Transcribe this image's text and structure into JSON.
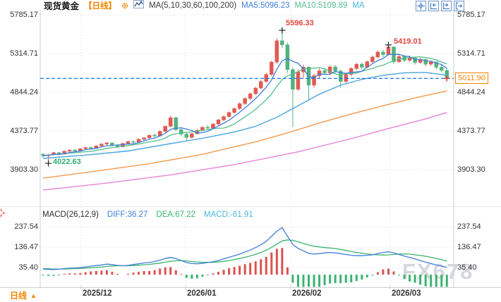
{
  "header": {
    "symbol": "现货黄金",
    "period_tag": "【日线】",
    "ma_settings": "MA(5,10,30,60,100,200)",
    "ma5": "MA5:5096.23",
    "ma10": "MA10:5109.89",
    "ma_more": "MA"
  },
  "toolbar_icons": [
    "crosshair",
    "compress-x-axis",
    "expand-x-axis",
    "exit-chart"
  ],
  "axes": {
    "price": [
      "5785.17",
      "5314.71",
      "4844.24",
      "4373.77",
      "3903.30"
    ],
    "macd": [
      "237.54",
      "136.47",
      "35.40"
    ],
    "time": [
      "2025/12",
      "2026/01",
      "2026/02",
      "2026/03"
    ]
  },
  "price_box": {
    "value": "5011.90"
  },
  "annotations": {
    "high1": "5596.33",
    "high2": "5419.01",
    "low": "4022.63"
  },
  "macd_header": {
    "title": "MACD(26,12,9)",
    "diff": "DIFF:36.27",
    "dea": "DEA:67.22",
    "macd": "MACD:-61.91"
  },
  "footer": {
    "period": "日线",
    "arrow": "▲"
  },
  "watermark": "FX678",
  "colors": {
    "up": "#e15a52",
    "down": "#54b27f",
    "ma5": "#3f7ed8",
    "ma10": "#53bd8e",
    "ma30": "#4da6e0",
    "ma60": "#f29a4e",
    "ma100": "#e884d8",
    "diff_line": "#3f7ed8",
    "dea_line": "#3cb371",
    "macd_text": "#49b8d8",
    "hist_pos": "#d9534f",
    "hist_neg": "#3cb371",
    "accent_orange": "#f28500",
    "price_line": "#1e76e8",
    "anno_red": "#e0463c",
    "anno_green": "#2eaf72",
    "grid": "#dcdde4",
    "border": "#c9cfd8",
    "axis_text": "#333333"
  },
  "chart_data": {
    "type": "candlestick+macd",
    "title": "现货黄金 日线 (Spot Gold, daily)",
    "price_axis_ticks": [
      5785.17,
      5314.71,
      4844.24,
      4373.77,
      3903.3
    ],
    "macd_axis_ticks": [
      237.54,
      136.47,
      35.4
    ],
    "time_ticks": [
      "2025/12",
      "2026/01",
      "2026/02",
      "2026/03"
    ],
    "last_price": 5011.9,
    "marked_points": [
      {
        "index": 45,
        "price": 5596.33,
        "kind": "high"
      },
      {
        "index": 65,
        "price": 5419.01,
        "kind": "high"
      },
      {
        "index": 1,
        "price": 4022.63,
        "kind": "low"
      }
    ],
    "candles_ohlc": [
      [
        4090,
        4105,
        4050,
        4072
      ],
      [
        4072,
        4090,
        4022.63,
        4085
      ],
      [
        4085,
        4120,
        4075,
        4110
      ],
      [
        4110,
        4118,
        4080,
        4092
      ],
      [
        4092,
        4135,
        4088,
        4128
      ],
      [
        4128,
        4150,
        4110,
        4142
      ],
      [
        4142,
        4155,
        4118,
        4130
      ],
      [
        4130,
        4165,
        4125,
        4158
      ],
      [
        4158,
        4180,
        4140,
        4172
      ],
      [
        4172,
        4185,
        4150,
        4160
      ],
      [
        4160,
        4200,
        4155,
        4192
      ],
      [
        4192,
        4225,
        4180,
        4215
      ],
      [
        4215,
        4240,
        4195,
        4228
      ],
      [
        4228,
        4235,
        4185,
        4198
      ],
      [
        4198,
        4210,
        4165,
        4180
      ],
      [
        4180,
        4230,
        4175,
        4222
      ],
      [
        4222,
        4255,
        4210,
        4245
      ],
      [
        4245,
        4260,
        4220,
        4238
      ],
      [
        4238,
        4285,
        4230,
        4272
      ],
      [
        4272,
        4300,
        4255,
        4290
      ],
      [
        4290,
        4330,
        4280,
        4322
      ],
      [
        4322,
        4345,
        4295,
        4312
      ],
      [
        4312,
        4380,
        4305,
        4368
      ],
      [
        4368,
        4440,
        4355,
        4430
      ],
      [
        4430,
        4560,
        4420,
        4535
      ],
      [
        4535,
        4545,
        4370,
        4390
      ],
      [
        4390,
        4420,
        4310,
        4335
      ],
      [
        4335,
        4360,
        4250,
        4295
      ],
      [
        4295,
        4350,
        4280,
        4340
      ],
      [
        4340,
        4395,
        4330,
        4382
      ],
      [
        4382,
        4430,
        4370,
        4418
      ],
      [
        4418,
        4445,
        4390,
        4408
      ],
      [
        4408,
        4470,
        4400,
        4458
      ],
      [
        4458,
        4520,
        4445,
        4508
      ],
      [
        4508,
        4560,
        4490,
        4548
      ],
      [
        4548,
        4610,
        4535,
        4598
      ],
      [
        4598,
        4660,
        4580,
        4645
      ],
      [
        4645,
        4720,
        4630,
        4705
      ],
      [
        4705,
        4780,
        4690,
        4768
      ],
      [
        4768,
        4840,
        4745,
        4825
      ],
      [
        4825,
        4910,
        4810,
        4895
      ],
      [
        4895,
        4990,
        4880,
        4975
      ],
      [
        4975,
        5080,
        4960,
        5060
      ],
      [
        5060,
        5230,
        5040,
        5210
      ],
      [
        5210,
        5500,
        5190,
        5470
      ],
      [
        5470,
        5596.33,
        5380,
        5420
      ],
      [
        5420,
        5450,
        5080,
        5120
      ],
      [
        5120,
        5150,
        4420,
        4880
      ],
      [
        4880,
        5120,
        4860,
        5090
      ],
      [
        5090,
        5180,
        5020,
        5150
      ],
      [
        5150,
        5160,
        4750,
        4930
      ],
      [
        4930,
        5070,
        4900,
        5045
      ],
      [
        5045,
        5130,
        5010,
        5105
      ],
      [
        5105,
        5140,
        5050,
        5080
      ],
      [
        5080,
        5170,
        5065,
        5152
      ],
      [
        5152,
        5175,
        5080,
        5102
      ],
      [
        5102,
        5120,
        4900,
        4975
      ],
      [
        4975,
        5080,
        4950,
        5060
      ],
      [
        5060,
        5150,
        5040,
        5132
      ],
      [
        5132,
        5200,
        5110,
        5185
      ],
      [
        5185,
        5210,
        5120,
        5148
      ],
      [
        5148,
        5230,
        5135,
        5215
      ],
      [
        5215,
        5290,
        5200,
        5272
      ],
      [
        5272,
        5350,
        5255,
        5332
      ],
      [
        5332,
        5360,
        5270,
        5302
      ],
      [
        5302,
        5419.01,
        5290,
        5395
      ],
      [
        5395,
        5400,
        5190,
        5215
      ],
      [
        5215,
        5300,
        5200,
        5278
      ],
      [
        5278,
        5295,
        5210,
        5232
      ],
      [
        5232,
        5290,
        5215,
        5262
      ],
      [
        5262,
        5275,
        5180,
        5205
      ],
      [
        5205,
        5258,
        5190,
        5242
      ],
      [
        5242,
        5250,
        5160,
        5185
      ],
      [
        5185,
        5230,
        5165,
        5212
      ],
      [
        5212,
        5220,
        5120,
        5148
      ],
      [
        5148,
        5180,
        5090,
        5110
      ],
      [
        5110,
        5130,
        4995,
        5011.9
      ]
    ],
    "ma_overlays": [
      {
        "name": "MA30",
        "color": "#4da6e0",
        "points": [
          [
            0,
            4040
          ],
          [
            8,
            4080
          ],
          [
            16,
            4130
          ],
          [
            24,
            4220
          ],
          [
            30,
            4285
          ],
          [
            36,
            4360
          ],
          [
            40,
            4430
          ],
          [
            44,
            4540
          ],
          [
            48,
            4680
          ],
          [
            52,
            4820
          ],
          [
            56,
            4930
          ],
          [
            60,
            5000
          ],
          [
            64,
            5050
          ],
          [
            68,
            5080
          ],
          [
            72,
            5085
          ],
          [
            76,
            5050
          ]
        ]
      },
      {
        "name": "MA60",
        "color": "#f29a4e",
        "points": [
          [
            0,
            3800
          ],
          [
            10,
            3885
          ],
          [
            20,
            3975
          ],
          [
            30,
            4090
          ],
          [
            40,
            4240
          ],
          [
            46,
            4350
          ],
          [
            52,
            4470
          ],
          [
            58,
            4580
          ],
          [
            64,
            4680
          ],
          [
            70,
            4775
          ],
          [
            76,
            4860
          ]
        ]
      },
      {
        "name": "MA100",
        "color": "#e884d8",
        "points": [
          [
            0,
            3655
          ],
          [
            12,
            3740
          ],
          [
            24,
            3840
          ],
          [
            36,
            3965
          ],
          [
            48,
            4120
          ],
          [
            58,
            4280
          ],
          [
            66,
            4420
          ],
          [
            72,
            4520
          ],
          [
            76,
            4598
          ]
        ]
      }
    ],
    "macd": {
      "params": [
        26,
        12,
        9
      ],
      "diff": [
        28,
        26,
        25,
        27,
        30,
        32,
        33,
        35,
        38,
        42,
        45,
        48,
        52,
        50,
        46,
        44,
        46,
        50,
        54,
        58,
        60,
        65,
        72,
        80,
        85,
        80,
        70,
        60,
        55,
        54,
        56,
        60,
        64,
        70,
        78,
        86,
        94,
        102,
        112,
        122,
        134,
        148,
        165,
        190,
        215,
        233,
        190,
        150,
        130,
        118,
        105,
        102,
        104,
        108,
        110,
        108,
        104,
        100,
        96,
        94,
        94,
        96,
        98,
        104,
        110,
        113,
        108,
        100,
        92,
        85,
        78,
        70,
        62,
        55,
        48,
        42,
        36.27
      ],
      "dea": [
        30,
        29,
        28,
        28,
        28,
        29,
        30,
        31,
        32,
        34,
        36,
        38,
        41,
        43,
        44,
        44,
        44,
        45,
        47,
        49,
        51,
        54,
        57,
        62,
        66,
        69,
        69,
        68,
        65,
        63,
        61,
        61,
        61,
        63,
        66,
        70,
        75,
        80,
        86,
        93,
        101,
        110,
        121,
        135,
        151,
        167,
        172,
        170,
        163,
        155,
        147,
        141,
        137,
        134,
        132,
        129,
        125,
        120,
        115,
        110,
        106,
        103,
        100,
        98,
        97,
        98,
        100,
        102,
        103,
        102,
        98,
        95,
        91,
        86,
        80,
        74,
        67.22
      ],
      "hist_rule": "2*(diff-dea)",
      "last": {
        "diff": 36.27,
        "dea": 67.22,
        "macd": -61.91
      }
    }
  }
}
